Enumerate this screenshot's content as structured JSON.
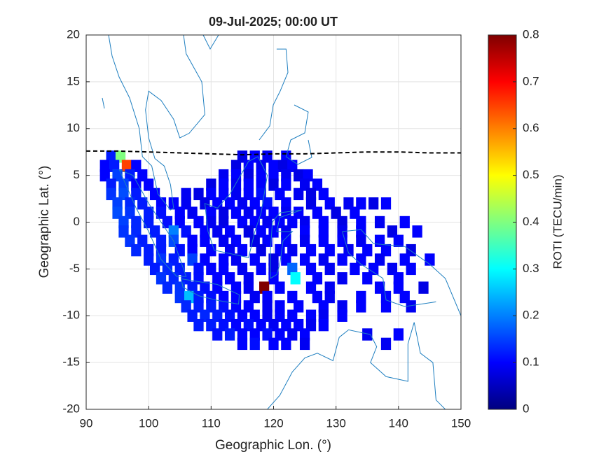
{
  "chart_data": {
    "type": "heatmap",
    "title": "09-Jul-2025; 00:00 UT",
    "xlabel": "Geographic Lon. (°)",
    "ylabel": "Geographic Lat. (°)",
    "xlim": [
      90,
      150
    ],
    "ylim": [
      -20,
      20
    ],
    "xticks": [
      90,
      100,
      110,
      120,
      130,
      140,
      150
    ],
    "yticks": [
      -20,
      -15,
      -10,
      -5,
      0,
      5,
      10,
      15,
      20
    ],
    "grid": true,
    "colormap": "jet",
    "colorbar": {
      "label": "ROTI (TECU/min)",
      "lim": [
        0,
        0.8
      ],
      "ticks": [
        0,
        0.1,
        0.2,
        0.3,
        0.4,
        0.5,
        0.6,
        0.7,
        0.8
      ]
    },
    "dip_equator": {
      "color": "#000000",
      "style": "dashed",
      "x": [
        90,
        95,
        100,
        105,
        110,
        115,
        120,
        125,
        130,
        135,
        140,
        145,
        150
      ],
      "y": [
        7.6,
        7.6,
        7.5,
        7.4,
        7.3,
        7.2,
        7.3,
        7.3,
        7.4,
        7.5,
        7.5,
        7.4,
        7.4
      ]
    },
    "rows": [
      {
        "y": 7,
        "x": [
          94,
          95.5,
          115,
          117,
          119,
          122
        ],
        "values": [
          0.12,
          0.4,
          0.08,
          0.1,
          0.09,
          0.1
        ]
      },
      {
        "y": 6,
        "x": [
          93,
          94.5,
          96.5,
          98,
          114,
          116,
          118,
          120,
          121.5,
          123
        ],
        "values": [
          0.1,
          0.12,
          0.65,
          0.1,
          0.08,
          0.1,
          0.09,
          0.1,
          0.08,
          0.1
        ]
      },
      {
        "y": 5,
        "x": [
          93,
          95,
          97,
          99,
          112,
          114,
          116,
          118,
          120,
          122,
          124,
          125.5
        ],
        "values": [
          0.1,
          0.15,
          0.12,
          0.1,
          0.09,
          0.1,
          0.08,
          0.1,
          0.1,
          0.09,
          0.08,
          0.1
        ]
      },
      {
        "y": 4,
        "x": [
          94,
          96,
          98,
          100,
          110,
          112,
          114,
          116,
          118,
          120,
          122,
          125,
          127
        ],
        "values": [
          0.12,
          0.15,
          0.1,
          0.1,
          0.08,
          0.1,
          0.09,
          0.1,
          0.1,
          0.08,
          0.1,
          0.09,
          0.1
        ]
      },
      {
        "y": 3,
        "x": [
          94,
          96,
          98,
          101,
          106,
          108,
          110,
          112,
          114,
          116,
          118,
          121,
          124,
          126,
          128
        ],
        "values": [
          0.14,
          0.16,
          0.12,
          0.1,
          0.09,
          0.08,
          0.1,
          0.1,
          0.09,
          0.1,
          0.11,
          0.1,
          0.09,
          0.08,
          0.1
        ]
      },
      {
        "y": 2,
        "x": [
          95,
          97,
          99,
          102,
          104,
          106,
          109,
          111,
          113,
          115,
          117,
          119,
          122,
          126,
          129,
          132,
          134,
          136,
          138
        ],
        "values": [
          0.15,
          0.13,
          0.12,
          0.1,
          0.1,
          0.09,
          0.08,
          0.1,
          0.1,
          0.09,
          0.1,
          0.11,
          0.1,
          0.08,
          0.1,
          0.09,
          0.1,
          0.08,
          0.1
        ]
      },
      {
        "y": 1,
        "x": [
          95,
          97,
          100,
          102,
          105,
          107,
          110,
          112,
          114,
          116,
          118,
          120,
          122,
          124,
          127,
          130,
          133
        ],
        "values": [
          0.16,
          0.14,
          0.12,
          0.11,
          0.1,
          0.09,
          0.1,
          0.08,
          0.1,
          0.09,
          0.1,
          0.1,
          0.09,
          0.1,
          0.1,
          0.08,
          0.1
        ]
      },
      {
        "y": 0,
        "x": [
          96,
          98,
          100,
          103,
          105,
          108,
          110,
          112,
          115,
          117,
          119,
          121,
          123,
          125,
          128,
          131,
          134,
          137,
          141
        ],
        "values": [
          0.15,
          0.13,
          0.12,
          0.11,
          0.1,
          0.1,
          0.09,
          0.08,
          0.1,
          0.1,
          0.09,
          0.1,
          0.1,
          0.09,
          0.1,
          0.08,
          0.1,
          0.09,
          0.1
        ]
      },
      {
        "y": -1,
        "x": [
          96,
          98,
          101,
          104,
          106,
          109,
          111,
          113,
          116,
          118,
          120,
          122,
          125,
          128,
          131,
          134,
          139,
          143
        ],
        "values": [
          0.14,
          0.13,
          0.12,
          0.2,
          0.11,
          0.1,
          0.09,
          0.1,
          0.08,
          0.1,
          0.1,
          0.09,
          0.1,
          0.1,
          0.09,
          0.1,
          0.08,
          0.1
        ]
      },
      {
        "y": -2,
        "x": [
          97,
          99,
          102,
          104,
          107,
          109,
          112,
          114,
          117,
          119,
          122,
          125,
          128,
          131,
          134,
          137,
          140
        ],
        "values": [
          0.14,
          0.12,
          0.12,
          0.16,
          0.1,
          0.1,
          0.09,
          0.1,
          0.08,
          0.1,
          0.1,
          0.09,
          0.1,
          0.1,
          0.09,
          0.1,
          0.1
        ]
      },
      {
        "y": -3,
        "x": [
          98,
          100,
          102,
          105,
          107,
          110,
          113,
          115,
          118,
          121,
          123,
          126,
          129,
          132,
          135,
          138,
          142
        ],
        "values": [
          0.13,
          0.12,
          0.12,
          0.11,
          0.1,
          0.1,
          0.09,
          0.1,
          0.08,
          0.1,
          0.09,
          0.1,
          0.1,
          0.09,
          0.1,
          0.1,
          0.08
        ]
      },
      {
        "y": -4,
        "x": [
          100,
          102,
          104,
          107,
          109,
          112,
          114,
          117,
          120,
          122,
          125,
          128,
          131,
          134,
          137,
          141,
          145
        ],
        "values": [
          0.12,
          0.14,
          0.12,
          0.15,
          0.1,
          0.1,
          0.09,
          0.1,
          0.08,
          0.1,
          0.1,
          0.09,
          0.1,
          0.1,
          0.09,
          0.1,
          0.1
        ]
      },
      {
        "y": -5,
        "x": [
          101,
          103,
          105,
          108,
          110,
          112,
          115,
          118,
          120,
          123,
          126,
          129,
          133,
          136,
          139,
          142
        ],
        "values": [
          0.12,
          0.13,
          0.12,
          0.11,
          0.1,
          0.1,
          0.09,
          0.1,
          0.08,
          0.18,
          0.1,
          0.09,
          0.1,
          0.1,
          0.09,
          0.1
        ]
      },
      {
        "y": -6,
        "x": [
          102,
          104,
          106,
          108,
          111,
          113,
          116,
          120,
          123.5,
          127,
          131,
          135,
          140
        ],
        "values": [
          0.14,
          0.13,
          0.12,
          0.11,
          0.1,
          0.1,
          0.09,
          0.1,
          0.3,
          0.1,
          0.09,
          0.1,
          0.1
        ]
      },
      {
        "y": -7,
        "x": [
          103,
          105,
          107,
          109,
          111,
          114,
          116,
          118.5,
          121,
          126,
          129,
          137,
          140,
          144
        ],
        "values": [
          0.13,
          0.14,
          0.12,
          0.11,
          0.1,
          0.1,
          0.09,
          0.8,
          0.1,
          0.1,
          0.09,
          0.1,
          0.1,
          0.08
        ]
      },
      {
        "y": -8,
        "x": [
          105,
          106.5,
          108,
          110,
          112,
          114,
          117,
          119,
          123,
          127,
          129,
          134,
          138,
          141
        ],
        "values": [
          0.14,
          0.25,
          0.12,
          0.11,
          0.1,
          0.1,
          0.09,
          0.1,
          0.1,
          0.1,
          0.09,
          0.1,
          0.1,
          0.1
        ]
      },
      {
        "y": -9,
        "x": [
          106,
          108,
          110,
          112,
          114,
          116,
          119,
          121,
          124,
          128,
          131,
          134,
          138,
          142
        ],
        "values": [
          0.13,
          0.12,
          0.12,
          0.11,
          0.1,
          0.1,
          0.09,
          0.1,
          0.1,
          0.1,
          0.09,
          0.1,
          0.1,
          0.09
        ]
      },
      {
        "y": -10,
        "x": [
          107,
          109,
          111,
          113,
          115,
          117,
          119,
          121,
          123,
          126,
          128,
          131
        ],
        "values": [
          0.12,
          0.13,
          0.12,
          0.11,
          0.1,
          0.1,
          0.09,
          0.1,
          0.1,
          0.1,
          0.09,
          0.1
        ]
      },
      {
        "y": -11,
        "x": [
          108,
          110,
          112,
          114,
          116,
          118,
          120,
          122,
          124,
          126,
          128
        ],
        "values": [
          0.12,
          0.12,
          0.11,
          0.1,
          0.11,
          0.1,
          0.09,
          0.1,
          0.1,
          0.09,
          0.1
        ]
      },
      {
        "y": -12,
        "x": [
          111,
          113,
          115,
          117,
          119,
          121,
          123,
          125,
          135,
          140
        ],
        "values": [
          0.11,
          0.12,
          0.1,
          0.1,
          0.11,
          0.1,
          0.09,
          0.1,
          0.09,
          0.1
        ]
      },
      {
        "y": -13,
        "x": [
          115,
          117,
          120,
          122,
          125,
          138
        ],
        "values": [
          0.1,
          0.11,
          0.1,
          0.1,
          0.09,
          0.09
        ]
      }
    ]
  }
}
